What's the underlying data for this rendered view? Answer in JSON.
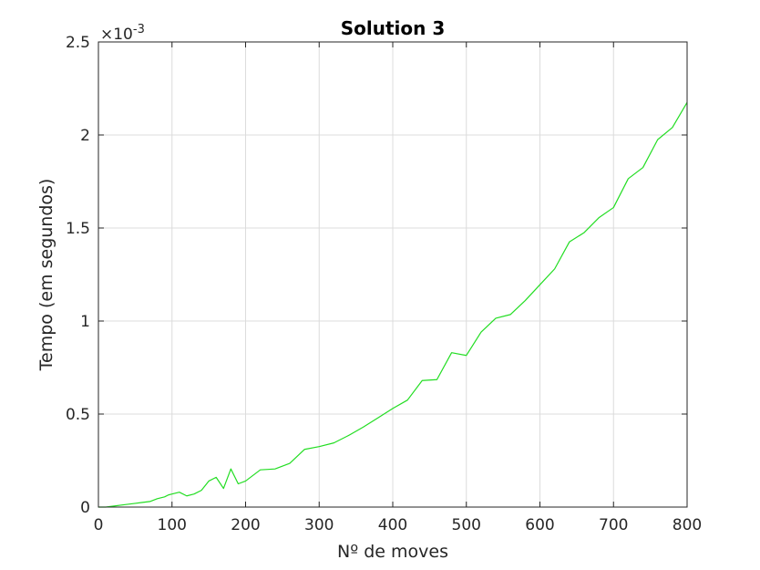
{
  "chart_data": {
    "type": "line",
    "title": "Solution 3",
    "xlabel": "Nº de moves",
    "ylabel": "Tempo (em segundos)",
    "y_multiplier_base": "×10",
    "y_multiplier_exponent": "-3",
    "xlim": [
      0,
      800
    ],
    "ylim": [
      0,
      2.5
    ],
    "x_ticks": [
      0,
      100,
      200,
      300,
      400,
      500,
      600,
      700,
      800
    ],
    "x_tick_labels": [
      "0",
      "100",
      "200",
      "300",
      "400",
      "500",
      "600",
      "700",
      "800"
    ],
    "y_ticks": [
      0,
      0.5,
      1,
      1.5,
      2,
      2.5
    ],
    "y_tick_labels": [
      "0",
      "0.5",
      "1",
      "1.5",
      "2",
      "2.5"
    ],
    "grid": true,
    "series": [
      {
        "color": "#22dd22",
        "x": [
          0,
          10,
          20,
          30,
          40,
          50,
          60,
          70,
          80,
          90,
          95,
          100,
          110,
          120,
          130,
          140,
          150,
          160,
          170,
          180,
          190,
          200,
          220,
          240,
          260,
          280,
          300,
          320,
          340,
          360,
          380,
          400,
          420,
          440,
          460,
          480,
          500,
          520,
          540,
          560,
          580,
          600,
          620,
          640,
          660,
          680,
          700,
          720,
          740,
          760,
          780,
          800
        ],
        "y": [
          0,
          0,
          0.005,
          0.01,
          0.015,
          0.02,
          0.025,
          0.03,
          0.045,
          0.055,
          0.065,
          0.07,
          0.08,
          0.06,
          0.07,
          0.09,
          0.14,
          0.16,
          0.1,
          0.205,
          0.125,
          0.14,
          0.2,
          0.205,
          0.235,
          0.31,
          0.325,
          0.345,
          0.385,
          0.43,
          0.48,
          0.53,
          0.575,
          0.68,
          0.685,
          0.83,
          0.815,
          0.94,
          1.015,
          1.035,
          1.11,
          1.195,
          1.28,
          1.425,
          1.475,
          1.555,
          1.61,
          1.765,
          1.825,
          1.975,
          2.04,
          2.175
        ]
      }
    ]
  }
}
